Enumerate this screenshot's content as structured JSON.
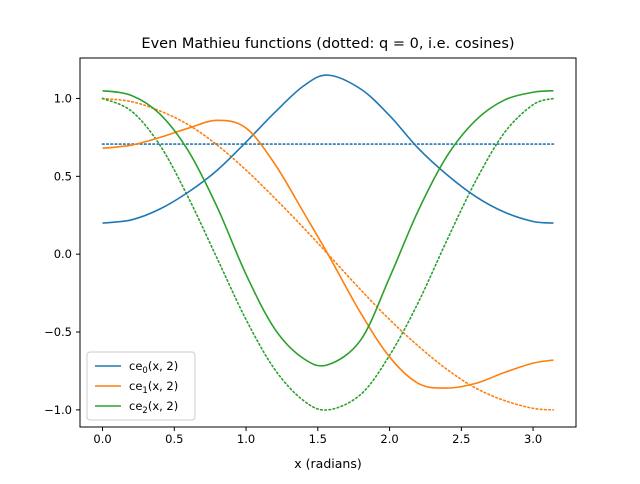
{
  "chart_data": {
    "type": "line",
    "title": "Even Mathieu functions (dotted: q = 0, i.e. cosines)",
    "xlabel": "x (radians)",
    "ylabel": "",
    "xlim": [
      -0.157,
      3.299
    ],
    "ylim": [
      -1.11,
      1.26
    ],
    "xticks": [
      0.0,
      0.5,
      1.0,
      1.5,
      2.0,
      2.5,
      3.0
    ],
    "xtick_labels": [
      "0.0",
      "0.5",
      "1.0",
      "1.5",
      "2.0",
      "2.5",
      "3.0"
    ],
    "yticks": [
      -1.0,
      -0.5,
      0.0,
      0.5,
      1.0
    ],
    "ytick_labels": [
      "−1.0",
      "−0.5",
      "0.0",
      "0.5",
      "1.0"
    ],
    "grid": false,
    "legend_position": "lower-left",
    "series": [
      {
        "name": "ce0(x, 2)",
        "legend_base": "ce",
        "legend_sub": "0",
        "legend_args": "(x, 2)",
        "color": "#1f77b4",
        "style": "solid",
        "x": [
          0.0,
          0.2,
          0.4,
          0.6,
          0.8,
          1.0,
          1.2,
          1.4,
          1.5708,
          1.8,
          2.0,
          2.2,
          2.4,
          2.6,
          2.8,
          3.0,
          3.1416
        ],
        "y": [
          0.2,
          0.22,
          0.29,
          0.4,
          0.54,
          0.72,
          0.91,
          1.08,
          1.15,
          1.06,
          0.89,
          0.68,
          0.51,
          0.37,
          0.27,
          0.21,
          0.2
        ]
      },
      {
        "name": "ce1(x, 2)",
        "legend_base": "ce",
        "legend_sub": "1",
        "legend_args": "(x, 2)",
        "color": "#ff7f0e",
        "style": "solid",
        "x": [
          0.0,
          0.2,
          0.4,
          0.6,
          0.8,
          1.0,
          1.2,
          1.4,
          1.5708,
          1.8,
          2.0,
          2.2,
          2.4,
          2.6,
          2.8,
          3.0,
          3.1416
        ],
        "y": [
          0.68,
          0.7,
          0.75,
          0.81,
          0.86,
          0.81,
          0.58,
          0.27,
          0.0,
          -0.38,
          -0.66,
          -0.83,
          -0.86,
          -0.83,
          -0.76,
          -0.7,
          -0.68
        ]
      },
      {
        "name": "ce2(x, 2)",
        "legend_base": "ce",
        "legend_sub": "2",
        "legend_args": "(x, 2)",
        "color": "#2ca02c",
        "style": "solid",
        "x": [
          0.0,
          0.2,
          0.4,
          0.6,
          0.8,
          1.0,
          1.2,
          1.4,
          1.5708,
          1.8,
          2.0,
          2.2,
          2.4,
          2.6,
          2.8,
          3.0,
          3.1416
        ],
        "y": [
          1.05,
          1.02,
          0.9,
          0.66,
          0.3,
          -0.13,
          -0.48,
          -0.67,
          -0.71,
          -0.55,
          -0.15,
          0.28,
          0.63,
          0.86,
          0.99,
          1.04,
          1.05
        ]
      },
      {
        "color": "#1f77b4",
        "style": "dotted",
        "x": [
          0.0,
          3.1416
        ],
        "y": [
          0.7071,
          0.7071
        ]
      },
      {
        "color": "#ff7f0e",
        "style": "dotted",
        "x": [
          0.0,
          0.2,
          0.4,
          0.6,
          0.8,
          1.0,
          1.2,
          1.4,
          1.5708,
          1.8,
          2.0,
          2.2,
          2.4,
          2.6,
          2.8,
          3.0,
          3.1416
        ],
        "y": [
          1.0,
          0.98,
          0.92,
          0.83,
          0.7,
          0.54,
          0.36,
          0.17,
          0.0,
          -0.23,
          -0.42,
          -0.59,
          -0.74,
          -0.86,
          -0.94,
          -0.99,
          -1.0
        ]
      },
      {
        "color": "#2ca02c",
        "style": "dotted",
        "x": [
          0.0,
          0.2,
          0.4,
          0.6,
          0.8,
          1.0,
          1.2,
          1.4,
          1.5708,
          1.8,
          2.0,
          2.2,
          2.4,
          2.6,
          2.8,
          3.0,
          3.1416
        ],
        "y": [
          1.0,
          0.92,
          0.7,
          0.36,
          -0.03,
          -0.42,
          -0.74,
          -0.94,
          -1.0,
          -0.9,
          -0.65,
          -0.31,
          0.09,
          0.47,
          0.78,
          0.96,
          1.0
        ]
      }
    ]
  }
}
